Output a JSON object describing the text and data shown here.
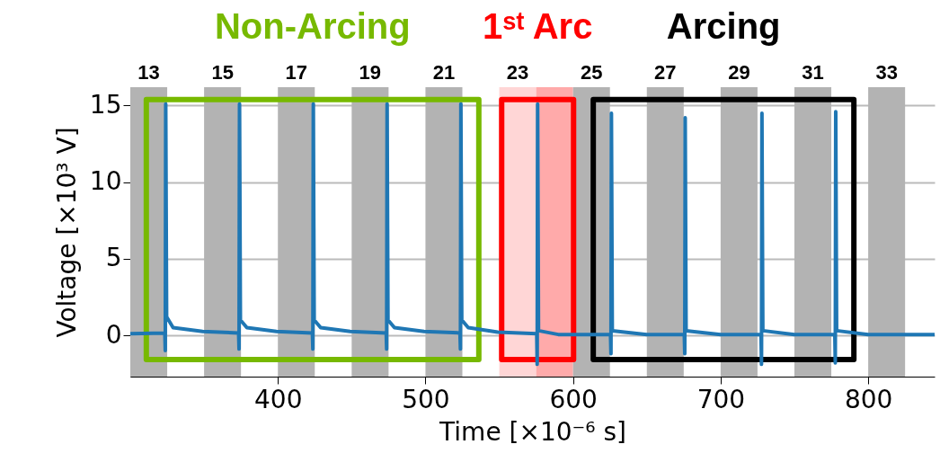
{
  "chart_data": {
    "type": "line",
    "xlabel": "Time [×10⁻⁶ s]",
    "ylabel": "Voltage [×10³ V]",
    "x": [
      300,
      323.4,
      323.7,
      324,
      324.6,
      329,
      349,
      373.4,
      373.7,
      374,
      374.6,
      379,
      399,
      423.4,
      423.7,
      424,
      424.6,
      429,
      449,
      473.4,
      473.7,
      474,
      474.6,
      479,
      499,
      523.4,
      523.7,
      524,
      524.6,
      529,
      549,
      575.4,
      575.7,
      576,
      576.6,
      590,
      625.4,
      625.7,
      626,
      626.6,
      650,
      675.4,
      675.7,
      676,
      676.6,
      700,
      727.4,
      727.7,
      728,
      728.6,
      750,
      777.4,
      777.7,
      778,
      778.6,
      800,
      845
    ],
    "series": [
      {
        "color": "#1f77b4",
        "values": [
          0.1,
          0.15,
          -1.0,
          15.1,
          1.2,
          0.5,
          0.25,
          0.15,
          -0.9,
          15.1,
          1.0,
          0.5,
          0.25,
          0.15,
          -0.9,
          15.1,
          1.0,
          0.5,
          0.25,
          0.15,
          -0.9,
          15.1,
          1.0,
          0.5,
          0.25,
          0.15,
          -0.9,
          15.1,
          1.0,
          0.5,
          0.2,
          0.1,
          -1.9,
          15.1,
          0.3,
          0.05,
          0.05,
          -1.2,
          14.5,
          0.3,
          0.05,
          0.05,
          -1.2,
          14.2,
          0.3,
          0.05,
          0.05,
          -1.9,
          14.5,
          0.3,
          0.05,
          0.05,
          -1.8,
          14.6,
          0.3,
          0.05,
          0.05
        ]
      }
    ],
    "xlim": [
      300,
      845
    ],
    "ylim": [
      -2.7,
      16.2
    ],
    "xticks": [
      400,
      500,
      600,
      700,
      800
    ],
    "yticks": [
      0,
      5,
      10,
      15
    ],
    "bands": [
      {
        "axis": "x",
        "from": 300,
        "to": 325,
        "label": "13",
        "color": "#b3b3b3"
      },
      {
        "axis": "x",
        "from": 350,
        "to": 375,
        "label": "15",
        "color": "#b3b3b3"
      },
      {
        "axis": "x",
        "from": 400,
        "to": 425,
        "label": "17",
        "color": "#b3b3b3"
      },
      {
        "axis": "x",
        "from": 450,
        "to": 475,
        "label": "19",
        "color": "#b3b3b3"
      },
      {
        "axis": "x",
        "from": 500,
        "to": 525,
        "label": "21",
        "color": "#b3b3b3"
      },
      {
        "axis": "x",
        "from": 550,
        "to": 575,
        "label": "23",
        "color": "#ffd6d6"
      },
      {
        "axis": "x",
        "from": 575,
        "to": 600,
        "color": "#ffaaaa"
      },
      {
        "axis": "x",
        "from": 600,
        "to": 625,
        "label": "25",
        "color": "#b3b3b3"
      },
      {
        "axis": "x",
        "from": 650,
        "to": 675,
        "label": "27",
        "color": "#b3b3b3"
      },
      {
        "axis": "x",
        "from": 700,
        "to": 725,
        "label": "29",
        "color": "#b3b3b3"
      },
      {
        "axis": "x",
        "from": 750,
        "to": 775,
        "label": "31",
        "color": "#b3b3b3"
      },
      {
        "axis": "x",
        "from": 800,
        "to": 825,
        "label": "33",
        "color": "#b3b3b3"
      }
    ],
    "annotations": [
      {
        "text": "Non-Arcing",
        "x": 423.5,
        "y": 15.4
      },
      {
        "text": "1ˢᵗ Arc",
        "x": 576,
        "y": 15.4
      },
      {
        "text": "Arcing",
        "x": 702,
        "y": 15.4
      }
    ],
    "grid": "y",
    "line_style": "solid"
  }
}
